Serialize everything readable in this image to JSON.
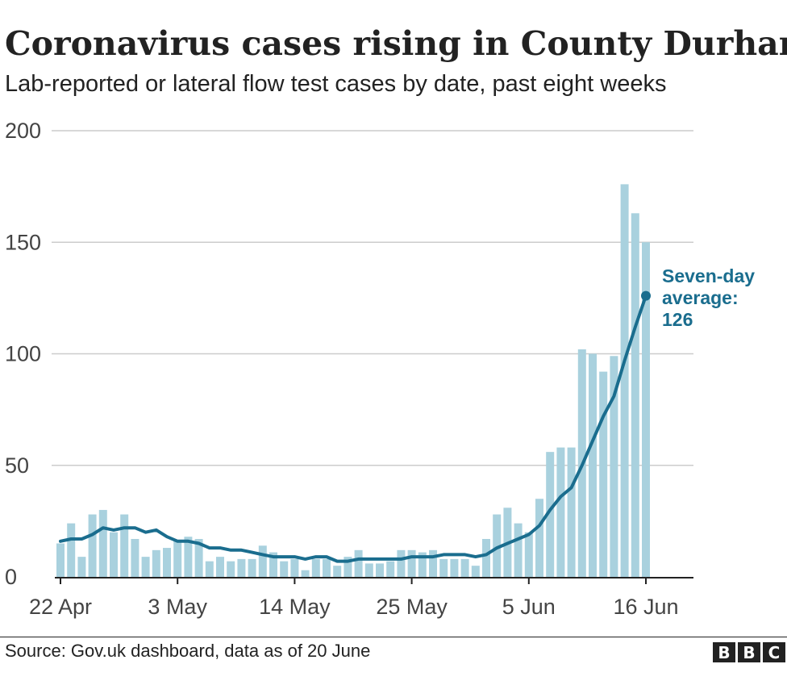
{
  "chart_data": {
    "type": "bar",
    "title": "Coronavirus cases rising in County Durham",
    "subtitle": "Lab-reported or lateral flow test cases by date, past eight weeks",
    "x_tick_labels": [
      "22 Apr",
      "3 May",
      "14 May",
      "25 May",
      "5 Jun",
      "16 Jun"
    ],
    "x_tick_dates": [
      "2021-04-22",
      "2021-05-03",
      "2021-05-14",
      "2021-05-25",
      "2021-06-05",
      "2021-06-16"
    ],
    "ylim": [
      0,
      200
    ],
    "y_ticks": [
      0,
      50,
      100,
      150,
      200
    ],
    "grid": true,
    "dates": [
      "2021-04-22",
      "2021-04-23",
      "2021-04-24",
      "2021-04-25",
      "2021-04-26",
      "2021-04-27",
      "2021-04-28",
      "2021-04-29",
      "2021-04-30",
      "2021-05-01",
      "2021-05-02",
      "2021-05-03",
      "2021-05-04",
      "2021-05-05",
      "2021-05-06",
      "2021-05-07",
      "2021-05-08",
      "2021-05-09",
      "2021-05-10",
      "2021-05-11",
      "2021-05-12",
      "2021-05-13",
      "2021-05-14",
      "2021-05-15",
      "2021-05-16",
      "2021-05-17",
      "2021-05-18",
      "2021-05-19",
      "2021-05-20",
      "2021-05-21",
      "2021-05-22",
      "2021-05-23",
      "2021-05-24",
      "2021-05-25",
      "2021-05-26",
      "2021-05-27",
      "2021-05-28",
      "2021-05-29",
      "2021-05-30",
      "2021-05-31",
      "2021-06-01",
      "2021-06-02",
      "2021-06-03",
      "2021-06-04",
      "2021-06-05",
      "2021-06-06",
      "2021-06-07",
      "2021-06-08",
      "2021-06-09",
      "2021-06-10",
      "2021-06-11",
      "2021-06-12",
      "2021-06-13",
      "2021-06-14",
      "2021-06-15",
      "2021-06-16"
    ],
    "series": [
      {
        "type": "bar",
        "color": "#a9d1de",
        "values": [
          15,
          24,
          9,
          28,
          30,
          20,
          28,
          17,
          9,
          12,
          13,
          16,
          18,
          17,
          7,
          9,
          7,
          8,
          8,
          14,
          11,
          7,
          8,
          3,
          8,
          8,
          5,
          9,
          12,
          6,
          6,
          7,
          12,
          12,
          11,
          12,
          8,
          8,
          8,
          5,
          17,
          28,
          31,
          24,
          20,
          35,
          56,
          58,
          58,
          102,
          100,
          92,
          99,
          176,
          163,
          150
        ]
      },
      {
        "type": "line",
        "name": "Seven-day average",
        "color": "#1a6d8e",
        "values": [
          16,
          17,
          17,
          19,
          22,
          21,
          22,
          22,
          20,
          21,
          18,
          16,
          16,
          15,
          13,
          13,
          12,
          12,
          11,
          10,
          9,
          9,
          9,
          8,
          9,
          9,
          7,
          7,
          8,
          8,
          8,
          8,
          8,
          9,
          9,
          9,
          10,
          10,
          10,
          9,
          10,
          13,
          15,
          17,
          19,
          23,
          30,
          36,
          40,
          50,
          61,
          72,
          81,
          97,
          112,
          126
        ]
      }
    ],
    "annotation": {
      "lines": [
        "Seven-day",
        "average:",
        "126"
      ],
      "color": "#1a6d8e"
    }
  },
  "footer": {
    "source": "Source: Gov.uk dashboard, data as of 20 June",
    "logo_letters": [
      "B",
      "B",
      "C"
    ]
  }
}
